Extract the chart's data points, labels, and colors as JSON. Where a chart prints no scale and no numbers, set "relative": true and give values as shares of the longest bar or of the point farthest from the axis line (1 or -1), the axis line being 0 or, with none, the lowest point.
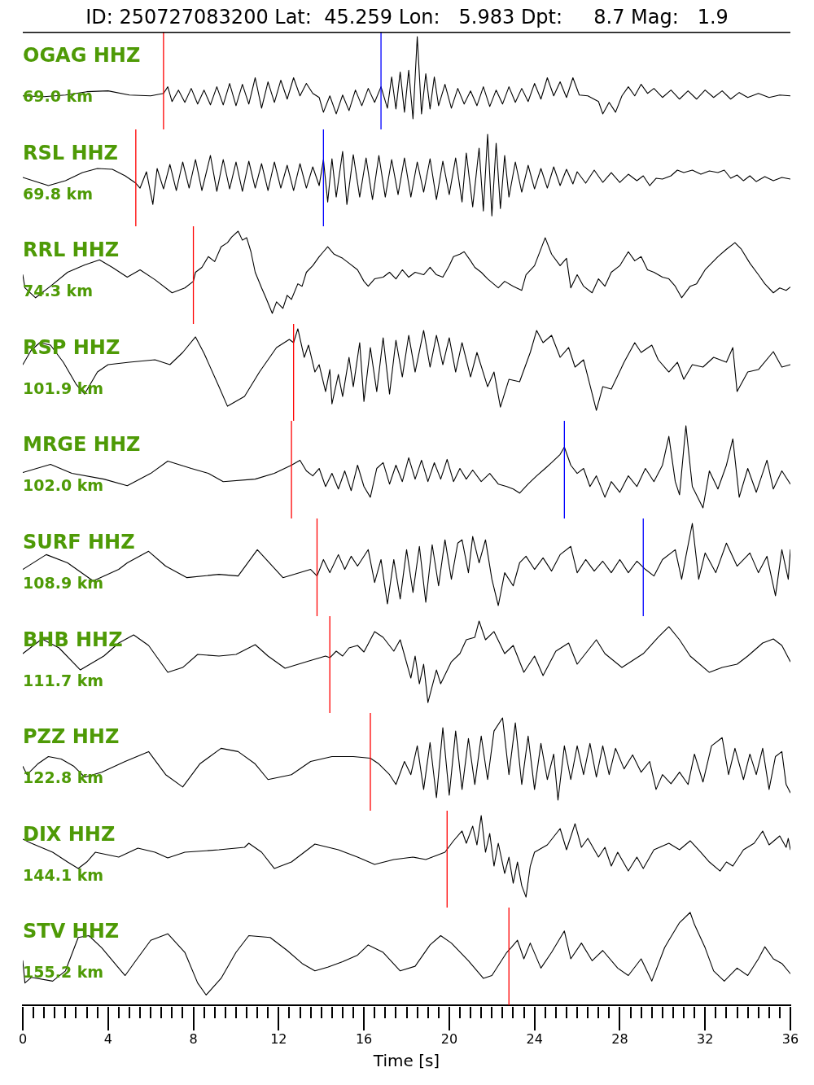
{
  "chart_data": [
    {
      "type": "line",
      "title": "ID: 250727083200 Lat:  45.259 Lon:   5.983 Dpt:     8.7 Mag:   1.9",
      "annotations": [
        "OGAG HHZ",
        "69.0 km"
      ],
      "relative": true,
      "xlim": [
        0,
        36
      ],
      "tick_labels": false,
      "ref_lines": [
        {
          "axis": "x",
          "value": 6.6,
          "color": "#ff0000"
        },
        {
          "axis": "x",
          "value": 16.8,
          "color": "#0000ff"
        }
      ],
      "x": [
        0,
        1,
        2,
        3,
        4,
        5,
        6,
        6.6,
        6.8,
        7,
        7.3,
        7.6,
        7.9,
        8.2,
        8.5,
        8.8,
        9.1,
        9.4,
        9.7,
        10,
        10.3,
        10.6,
        10.9,
        11.2,
        11.5,
        11.8,
        12.1,
        12.4,
        12.7,
        13,
        13.3,
        13.6,
        13.9,
        14.1,
        14.4,
        14.7,
        15,
        15.3,
        15.6,
        15.9,
        16.2,
        16.5,
        16.8,
        17.1,
        17.3,
        17.5,
        17.7,
        17.9,
        18.1,
        18.3,
        18.5,
        18.7,
        18.9,
        19.1,
        19.3,
        19.5,
        19.8,
        20.1,
        20.4,
        20.7,
        21,
        21.3,
        21.6,
        21.9,
        22.2,
        22.5,
        22.8,
        23.1,
        23.4,
        23.7,
        24,
        24.3,
        24.6,
        24.9,
        25.2,
        25.5,
        25.8,
        26.1,
        26.5,
        27,
        27.2,
        27.5,
        27.8,
        28.1,
        28.4,
        28.7,
        29,
        29.3,
        29.6,
        30,
        30.4,
        30.8,
        31.2,
        31.6,
        32,
        32.4,
        32.8,
        33.2,
        33.6,
        34,
        34.5,
        35,
        35.5,
        36
      ],
      "series": [
        {
          "color": "#000000",
          "values": [
            0.28,
            0.27,
            0.29,
            0.33,
            0.34,
            0.29,
            0.28,
            0.31,
            0.39,
            0.21,
            0.35,
            0.2,
            0.37,
            0.18,
            0.35,
            0.17,
            0.39,
            0.17,
            0.43,
            0.16,
            0.42,
            0.18,
            0.5,
            0.13,
            0.45,
            0.2,
            0.47,
            0.24,
            0.5,
            0.28,
            0.43,
            0.31,
            0.26,
            0.08,
            0.28,
            0.06,
            0.29,
            0.1,
            0.35,
            0.16,
            0.37,
            0.2,
            0.39,
            0.13,
            0.51,
            0.12,
            0.57,
            0.08,
            0.59,
            0,
            1,
            0.06,
            0.55,
            0.12,
            0.51,
            0.16,
            0.42,
            0.13,
            0.37,
            0.18,
            0.34,
            0.16,
            0.39,
            0.15,
            0.35,
            0.18,
            0.39,
            0.2,
            0.37,
            0.21,
            0.43,
            0.24,
            0.5,
            0.28,
            0.45,
            0.26,
            0.5,
            0.29,
            0.28,
            0.21,
            0.06,
            0.2,
            0.08,
            0.28,
            0.39,
            0.28,
            0.42,
            0.31,
            0.37,
            0.26,
            0.35,
            0.24,
            0.34,
            0.24,
            0.35,
            0.26,
            0.34,
            0.24,
            0.32,
            0.26,
            0.31,
            0.26,
            0.29,
            0.28
          ]
        }
      ]
    },
    {
      "type": "line",
      "annotations": [
        "RSL HHZ",
        "69.8 km"
      ],
      "relative": true,
      "xlim": [
        0,
        36
      ],
      "tick_labels": false,
      "ref_lines": [
        {
          "axis": "x",
          "value": 5.3,
          "color": "#ff0000"
        },
        {
          "axis": "x",
          "value": 14.1,
          "color": "#0000ff"
        }
      ],
      "x": [
        0,
        0.6,
        1.2,
        2,
        2.8,
        3.5,
        4.2,
        4.8,
        5.3,
        5.5,
        5.8,
        6.1,
        6.3,
        6.6,
        6.9,
        7.2,
        7.5,
        7.8,
        8.1,
        8.4,
        8.8,
        9.1,
        9.4,
        9.7,
        10,
        10.3,
        10.6,
        10.9,
        11.2,
        11.5,
        11.8,
        12.1,
        12.4,
        12.7,
        13,
        13.3,
        13.6,
        13.9,
        14.1,
        14.3,
        14.5,
        14.7,
        15,
        15.2,
        15.5,
        15.8,
        16.1,
        16.4,
        16.7,
        17,
        17.3,
        17.6,
        17.9,
        18.2,
        18.5,
        18.8,
        19.1,
        19.4,
        19.7,
        20,
        20.3,
        20.6,
        20.8,
        21.1,
        21.4,
        21.6,
        21.8,
        22,
        22.2,
        22.4,
        22.6,
        22.8,
        23.1,
        23.4,
        23.7,
        24,
        24.3,
        24.6,
        24.9,
        25.2,
        25.5,
        25.8,
        26,
        26.4,
        26.8,
        27.2,
        27.6,
        28,
        28.4,
        28.8,
        29.1,
        29.4,
        29.7,
        30,
        30.4,
        30.7,
        31,
        31.4,
        31.8,
        32.2,
        32.6,
        32.9,
        33.2,
        33.5,
        33.8,
        34.1,
        34.4,
        34.8,
        35.2,
        35.6,
        36
      ],
      "series": [
        {
          "color": "#000000",
          "values": [
            0.47,
            0.42,
            0.37,
            0.43,
            0.53,
            0.58,
            0.57,
            0.49,
            0.4,
            0.34,
            0.54,
            0.14,
            0.58,
            0.33,
            0.63,
            0.31,
            0.66,
            0.34,
            0.69,
            0.31,
            0.74,
            0.3,
            0.69,
            0.33,
            0.66,
            0.3,
            0.67,
            0.34,
            0.64,
            0.31,
            0.66,
            0.34,
            0.62,
            0.31,
            0.64,
            0.34,
            0.6,
            0.37,
            0.69,
            0.17,
            0.7,
            0.23,
            0.79,
            0.14,
            0.75,
            0.23,
            0.71,
            0.2,
            0.74,
            0.23,
            0.69,
            0.26,
            0.71,
            0.23,
            0.66,
            0.29,
            0.7,
            0.2,
            0.67,
            0.26,
            0.71,
            0.17,
            0.77,
            0.11,
            0.83,
            0.06,
            1,
            0,
            0.89,
            0.09,
            0.74,
            0.23,
            0.66,
            0.29,
            0.62,
            0.33,
            0.58,
            0.34,
            0.6,
            0.37,
            0.57,
            0.39,
            0.54,
            0.4,
            0.56,
            0.41,
            0.53,
            0.41,
            0.51,
            0.43,
            0.49,
            0.37,
            0.46,
            0.45,
            0.49,
            0.56,
            0.53,
            0.56,
            0.51,
            0.55,
            0.53,
            0.56,
            0.46,
            0.5,
            0.43,
            0.49,
            0.42,
            0.48,
            0.43,
            0.47,
            0.45
          ]
        }
      ]
    },
    {
      "type": "line",
      "annotations": [
        "RRL HHZ",
        "74.3 km"
      ],
      "relative": true,
      "xlim": [
        0,
        36
      ],
      "tick_labels": false,
      "ref_lines": [
        {
          "axis": "x",
          "value": 8.0,
          "color": "#ff0000"
        }
      ],
      "x": [
        0,
        0.1,
        0.6,
        1.3,
        2.1,
        2.9,
        3.6,
        4.2,
        4.9,
        5.5,
        6.2,
        7,
        7.6,
        8,
        8.1,
        8.4,
        8.7,
        9,
        9.3,
        9.6,
        9.8,
        10.1,
        10.3,
        10.5,
        10.7,
        10.9,
        11.2,
        11.4,
        11.7,
        11.9,
        12.2,
        12.4,
        12.6,
        12.9,
        13.1,
        13.3,
        13.6,
        13.9,
        14.1,
        14.3,
        14.6,
        15,
        15.3,
        15.7,
        16,
        16.2,
        16.5,
        16.9,
        17.2,
        17.5,
        17.8,
        18.1,
        18.4,
        18.8,
        19.1,
        19.4,
        19.7,
        20,
        20.2,
        20.5,
        20.7,
        21,
        21.2,
        21.5,
        21.8,
        22.3,
        22.6,
        23,
        23.4,
        23.6,
        24,
        24.5,
        24.8,
        25.2,
        25.5,
        25.7,
        26,
        26.3,
        26.7,
        27,
        27.3,
        27.6,
        28,
        28.4,
        28.7,
        29,
        29.3,
        29.6,
        30,
        30.3,
        30.6,
        30.9,
        31.3,
        31.6,
        32,
        32.3,
        32.6,
        33,
        33.4,
        33.7,
        34.1,
        34.5,
        34.8,
        35.2,
        35.5,
        35.8,
        36
      ],
      "series": [
        {
          "color": "#000000",
          "values": [
            0.47,
            0.31,
            0.19,
            0.33,
            0.5,
            0.59,
            0.65,
            0.56,
            0.44,
            0.53,
            0.41,
            0.25,
            0.31,
            0.39,
            0.5,
            0.56,
            0.69,
            0.63,
            0.81,
            0.86,
            0.93,
            1,
            0.89,
            0.92,
            0.75,
            0.5,
            0.31,
            0.19,
            0,
            0.14,
            0.06,
            0.22,
            0.17,
            0.36,
            0.33,
            0.5,
            0.58,
            0.69,
            0.75,
            0.81,
            0.72,
            0.67,
            0.61,
            0.53,
            0.39,
            0.33,
            0.42,
            0.44,
            0.5,
            0.42,
            0.53,
            0.44,
            0.5,
            0.47,
            0.56,
            0.47,
            0.44,
            0.58,
            0.69,
            0.72,
            0.75,
            0.64,
            0.56,
            0.5,
            0.42,
            0.31,
            0.39,
            0.33,
            0.28,
            0.47,
            0.58,
            0.92,
            0.72,
            0.58,
            0.67,
            0.31,
            0.47,
            0.33,
            0.25,
            0.42,
            0.33,
            0.5,
            0.58,
            0.75,
            0.64,
            0.69,
            0.53,
            0.5,
            0.44,
            0.42,
            0.33,
            0.19,
            0.33,
            0.36,
            0.53,
            0.61,
            0.69,
            0.78,
            0.86,
            0.78,
            0.61,
            0.47,
            0.36,
            0.25,
            0.31,
            0.28,
            0.32
          ]
        }
      ]
    },
    {
      "type": "line",
      "annotations": [
        "RSP HHZ",
        "101.9 km"
      ],
      "relative": true,
      "xlim": [
        0,
        36
      ],
      "tick_labels": false,
      "ref_lines": [
        {
          "axis": "x",
          "value": 12.7,
          "color": "#ff0000"
        }
      ],
      "x": [
        0,
        0.4,
        0.8,
        1.3,
        1.9,
        2.5,
        2.9,
        3.5,
        4,
        5,
        6.2,
        6.9,
        7.5,
        8.1,
        8.5,
        9.2,
        9.6,
        10.4,
        11.1,
        11.9,
        12.5,
        12.7,
        12.9,
        13.2,
        13.4,
        13.7,
        13.9,
        14.2,
        14.4,
        14.5,
        14.8,
        15,
        15.3,
        15.5,
        15.8,
        16,
        16.3,
        16.6,
        16.9,
        17.2,
        17.5,
        17.8,
        18.1,
        18.4,
        18.8,
        19.1,
        19.4,
        19.7,
        20,
        20.3,
        20.6,
        21,
        21.3,
        21.8,
        22.1,
        22.4,
        22.8,
        23.3,
        23.8,
        24.1,
        24.4,
        24.8,
        25.2,
        25.6,
        25.9,
        26.3,
        26.9,
        27.2,
        27.6,
        28.2,
        28.7,
        29,
        29.5,
        29.8,
        30.3,
        30.7,
        31,
        31.4,
        31.9,
        32.4,
        33,
        33.3,
        33.5,
        34,
        34.5,
        35.2,
        35.6,
        36
      ],
      "series": [
        {
          "color": "#000000",
          "values": [
            0.56,
            0.74,
            0.83,
            0.8,
            0.59,
            0.32,
            0.2,
            0.47,
            0.56,
            0.59,
            0.62,
            0.56,
            0.71,
            0.9,
            0.7,
            0.29,
            0.05,
            0.17,
            0.47,
            0.77,
            0.87,
            0.83,
            1,
            0.65,
            0.8,
            0.47,
            0.56,
            0.23,
            0.5,
            0.08,
            0.44,
            0.17,
            0.65,
            0.29,
            0.83,
            0.11,
            0.77,
            0.23,
            0.89,
            0.2,
            0.86,
            0.41,
            0.92,
            0.47,
            0.98,
            0.53,
            0.92,
            0.56,
            0.89,
            0.47,
            0.83,
            0.41,
            0.71,
            0.29,
            0.47,
            0.04,
            0.38,
            0.35,
            0.71,
            0.98,
            0.83,
            0.92,
            0.65,
            0.77,
            0.53,
            0.62,
            0,
            0.29,
            0.26,
            0.59,
            0.83,
            0.71,
            0.8,
            0.62,
            0.47,
            0.59,
            0.38,
            0.56,
            0.53,
            0.65,
            0.59,
            0.77,
            0.23,
            0.47,
            0.5,
            0.72,
            0.53,
            0.56
          ]
        }
      ]
    },
    {
      "type": "line",
      "annotations": [
        "MRGE HHZ",
        "102.0 km"
      ],
      "relative": true,
      "xlim": [
        0,
        36
      ],
      "tick_labels": false,
      "ref_lines": [
        {
          "axis": "x",
          "value": 12.6,
          "color": "#ff0000"
        },
        {
          "axis": "x",
          "value": 25.4,
          "color": "#0000ff"
        }
      ],
      "x": [
        0,
        1.3,
        2.3,
        3.8,
        4.9,
        6,
        6.8,
        7.9,
        8.7,
        9.4,
        10.9,
        11.8,
        12.6,
        13,
        13.3,
        13.6,
        13.9,
        14.2,
        14.5,
        14.8,
        15.1,
        15.4,
        15.7,
        16,
        16.3,
        16.6,
        16.9,
        17.2,
        17.5,
        17.8,
        18.1,
        18.4,
        18.7,
        19,
        19.3,
        19.6,
        19.9,
        20.2,
        20.5,
        20.8,
        21.1,
        21.5,
        21.9,
        22.3,
        22.7,
        23,
        23.3,
        23.7,
        24.1,
        24.5,
        24.8,
        25.2,
        25.4,
        25.7,
        26,
        26.3,
        26.6,
        26.9,
        27.3,
        27.6,
        28,
        28.4,
        28.8,
        29.2,
        29.6,
        30,
        30.3,
        30.6,
        30.8,
        31.1,
        31.4,
        31.9,
        32.2,
        32.6,
        33,
        33.3,
        33.6,
        34,
        34.4,
        34.9,
        35.2,
        35.6,
        36
      ],
      "series": [
        {
          "color": "#000000",
          "values": [
            0.43,
            0.53,
            0.42,
            0.35,
            0.27,
            0.42,
            0.57,
            0.48,
            0.42,
            0.32,
            0.35,
            0.42,
            0.52,
            0.58,
            0.45,
            0.39,
            0.48,
            0.26,
            0.42,
            0.23,
            0.45,
            0.21,
            0.52,
            0.26,
            0.13,
            0.48,
            0.55,
            0.29,
            0.52,
            0.32,
            0.61,
            0.35,
            0.58,
            0.32,
            0.55,
            0.35,
            0.59,
            0.32,
            0.48,
            0.35,
            0.46,
            0.32,
            0.42,
            0.29,
            0.26,
            0.23,
            0.18,
            0.29,
            0.39,
            0.48,
            0.55,
            0.65,
            0.74,
            0.52,
            0.42,
            0.48,
            0.26,
            0.39,
            0.13,
            0.32,
            0.19,
            0.39,
            0.26,
            0.48,
            0.32,
            0.52,
            0.87,
            0.32,
            0.16,
            1,
            0.26,
            0,
            0.45,
            0.23,
            0.52,
            0.84,
            0.13,
            0.48,
            0.19,
            0.58,
            0.23,
            0.45,
            0.29
          ]
        }
      ]
    },
    {
      "type": "line",
      "annotations": [
        "SURF HHZ",
        "108.9 km"
      ],
      "relative": true,
      "xlim": [
        0,
        36
      ],
      "tick_labels": false,
      "ref_lines": [
        {
          "axis": "x",
          "value": 13.8,
          "color": "#ff0000"
        },
        {
          "axis": "x",
          "value": 29.1,
          "color": "#0000ff"
        }
      ],
      "x": [
        0,
        1.1,
        2.1,
        3.3,
        4.5,
        4.9,
        5.9,
        6.7,
        7.7,
        9.2,
        10.1,
        11,
        12.2,
        13.5,
        13.8,
        14.1,
        14.4,
        14.8,
        15.1,
        15.4,
        15.7,
        16.2,
        16.5,
        16.8,
        17.1,
        17.4,
        17.7,
        18,
        18.3,
        18.6,
        18.9,
        19.2,
        19.5,
        19.8,
        20.1,
        20.4,
        20.6,
        20.9,
        21.1,
        21.4,
        21.7,
        22,
        22.3,
        22.6,
        23,
        23.3,
        23.6,
        24,
        24.4,
        24.8,
        25.2,
        25.7,
        26,
        26.4,
        26.8,
        27.2,
        27.6,
        28,
        28.4,
        28.8,
        29.2,
        29.6,
        30,
        30.6,
        30.9,
        31.1,
        31.4,
        31.7,
        32,
        32.5,
        33,
        33.5,
        34.1,
        34.5,
        34.9,
        35.3,
        35.6,
        35.9,
        36
      ],
      "series": [
        {
          "color": "#000000",
          "values": [
            0.44,
            0.62,
            0.52,
            0.3,
            0.44,
            0.52,
            0.66,
            0.48,
            0.34,
            0.38,
            0.36,
            0.68,
            0.34,
            0.44,
            0.36,
            0.56,
            0.4,
            0.62,
            0.44,
            0.6,
            0.48,
            0.68,
            0.28,
            0.56,
            0.02,
            0.56,
            0.08,
            0.68,
            0.16,
            0.72,
            0.04,
            0.74,
            0.24,
            0.8,
            0.32,
            0.76,
            0.8,
            0.4,
            0.84,
            0.52,
            0.8,
            0.32,
            0,
            0.4,
            0.24,
            0.52,
            0.6,
            0.44,
            0.58,
            0.42,
            0.62,
            0.72,
            0.4,
            0.56,
            0.42,
            0.54,
            0.4,
            0.56,
            0.4,
            0.54,
            0.44,
            0.36,
            0.56,
            0.68,
            0.32,
            0.6,
            1,
            0.32,
            0.64,
            0.4,
            0.76,
            0.48,
            0.64,
            0.4,
            0.6,
            0.12,
            0.68,
            0.32,
            0.68
          ]
        }
      ]
    },
    {
      "type": "line",
      "annotations": [
        "BHB HHZ",
        "111.7 km"
      ],
      "relative": true,
      "xlim": [
        0,
        36
      ],
      "tick_labels": false,
      "ref_lines": [
        {
          "axis": "x",
          "value": 14.4,
          "color": "#ff0000"
        }
      ],
      "x": [
        0,
        0.9,
        1.7,
        2.7,
        3.8,
        4.5,
        5.2,
        5.9,
        6.8,
        7.5,
        8.2,
        9.2,
        10,
        10.9,
        11.5,
        12.3,
        13.3,
        14.2,
        14.4,
        14.7,
        15,
        15.3,
        15.7,
        16,
        16.5,
        16.9,
        17.4,
        17.7,
        18.2,
        18.4,
        18.6,
        18.8,
        19,
        19.4,
        19.6,
        20.1,
        20.5,
        20.8,
        21.2,
        21.4,
        21.7,
        22.1,
        22.6,
        23,
        23.5,
        24,
        24.4,
        25,
        25.6,
        26,
        26.9,
        27.3,
        28.1,
        29.1,
        29.8,
        30.3,
        30.8,
        31.3,
        32.2,
        32.8,
        33.5,
        34,
        34.7,
        35.2,
        35.6,
        35.8,
        36
      ],
      "series": [
        {
          "color": "#000000",
          "values": [
            0.6,
            0.78,
            0.67,
            0.4,
            0.57,
            0.73,
            0.83,
            0.7,
            0.37,
            0.43,
            0.59,
            0.57,
            0.59,
            0.71,
            0.57,
            0.42,
            0.5,
            0.57,
            0.55,
            0.63,
            0.57,
            0.67,
            0.7,
            0.62,
            0.87,
            0.8,
            0.63,
            0.77,
            0.3,
            0.57,
            0.23,
            0.47,
            0,
            0.4,
            0.23,
            0.5,
            0.6,
            0.77,
            0.8,
            1,
            0.77,
            0.87,
            0.6,
            0.7,
            0.37,
            0.57,
            0.33,
            0.63,
            0.73,
            0.47,
            0.77,
            0.6,
            0.43,
            0.6,
            0.8,
            0.93,
            0.77,
            0.57,
            0.37,
            0.43,
            0.47,
            0.57,
            0.73,
            0.78,
            0.7,
            0.6,
            0.5
          ]
        }
      ]
    },
    {
      "type": "line",
      "annotations": [
        "PZZ HHZ",
        "122.8 km"
      ],
      "relative": true,
      "xlim": [
        0,
        36
      ],
      "tick_labels": false,
      "ref_lines": [
        {
          "axis": "x",
          "value": 16.3,
          "color": "#ff0000"
        }
      ],
      "x": [
        0,
        0.2,
        0.7,
        1.2,
        1.8,
        2.4,
        2.9,
        3.7,
        4.8,
        5.9,
        6.7,
        7.5,
        8.3,
        9.3,
        10.1,
        10.9,
        11.5,
        12.6,
        13.5,
        14.5,
        15.5,
        16.3,
        16.7,
        17.2,
        17.5,
        17.9,
        18.2,
        18.5,
        18.8,
        19.1,
        19.4,
        19.7,
        20,
        20.3,
        20.6,
        20.9,
        21.2,
        21.5,
        21.8,
        22.1,
        22.5,
        22.8,
        23.1,
        23.4,
        23.7,
        24,
        24.3,
        24.6,
        24.9,
        25.1,
        25.4,
        25.7,
        26,
        26.3,
        26.6,
        26.9,
        27.2,
        27.5,
        27.8,
        28.2,
        28.6,
        29,
        29.4,
        29.7,
        30,
        30.4,
        30.8,
        31.2,
        31.5,
        31.9,
        32.3,
        32.8,
        33.1,
        33.4,
        33.8,
        34.1,
        34.4,
        34.7,
        35,
        35.3,
        35.6,
        35.8,
        36
      ],
      "series": [
        {
          "color": "#000000",
          "values": [
            0.41,
            0.31,
            0.44,
            0.53,
            0.5,
            0.41,
            0.28,
            0.34,
            0.47,
            0.59,
            0.31,
            0.16,
            0.44,
            0.63,
            0.59,
            0.44,
            0.25,
            0.31,
            0.47,
            0.53,
            0.53,
            0.51,
            0.44,
            0.31,
            0.19,
            0.47,
            0.31,
            0.66,
            0.13,
            0.7,
            0.03,
            0.88,
            0.06,
            0.84,
            0.13,
            0.75,
            0.19,
            0.78,
            0.25,
            0.84,
            1,
            0.31,
            0.94,
            0.19,
            0.78,
            0.13,
            0.69,
            0.25,
            0.56,
            0,
            0.66,
            0.25,
            0.66,
            0.31,
            0.69,
            0.28,
            0.66,
            0.31,
            0.63,
            0.38,
            0.55,
            0.34,
            0.47,
            0.13,
            0.31,
            0.2,
            0.34,
            0.19,
            0.56,
            0.22,
            0.66,
            0.76,
            0.31,
            0.63,
            0.25,
            0.56,
            0.31,
            0.63,
            0.13,
            0.53,
            0.59,
            0.19,
            0.09
          ]
        }
      ]
    },
    {
      "type": "line",
      "annotations": [
        "DIX HHZ",
        "144.1 km"
      ],
      "relative": true,
      "xlim": [
        0,
        36
      ],
      "tick_labels": false,
      "ref_lines": [
        {
          "axis": "x",
          "value": 19.9,
          "color": "#ff0000"
        }
      ],
      "x": [
        0,
        0.4,
        1.4,
        2.1,
        2.6,
        3,
        3.4,
        4.5,
        5.4,
        6.2,
        6.8,
        7.6,
        9.2,
        10.4,
        10.6,
        11.2,
        11.8,
        12.6,
        13.7,
        14.8,
        15.7,
        16.5,
        17.4,
        18.3,
        18.9,
        19.8,
        20.2,
        20.6,
        20.8,
        21.1,
        21.3,
        21.5,
        21.7,
        21.9,
        22.1,
        22.3,
        22.6,
        22.8,
        23,
        23.2,
        23.4,
        23.6,
        23.8,
        24,
        24.6,
        25.2,
        25.5,
        25.9,
        26.2,
        26.5,
        27,
        27.3,
        27.6,
        27.9,
        28.4,
        28.8,
        29.1,
        29.6,
        30.3,
        30.8,
        31.3,
        31.8,
        32.2,
        32.7,
        33,
        33.3,
        33.8,
        34.3,
        34.7,
        35,
        35.5,
        35.8,
        35.9,
        36
      ],
      "series": [
        {
          "color": "#000000",
          "values": [
            0.71,
            0.66,
            0.55,
            0.43,
            0.35,
            0.43,
            0.55,
            0.49,
            0.6,
            0.55,
            0.48,
            0.55,
            0.58,
            0.61,
            0.66,
            0.55,
            0.35,
            0.43,
            0.65,
            0.58,
            0.49,
            0.4,
            0.46,
            0.49,
            0.46,
            0.55,
            0.69,
            0.81,
            0.66,
            0.87,
            0.64,
            1,
            0.55,
            0.78,
            0.38,
            0.66,
            0.29,
            0.49,
            0.17,
            0.43,
            0.14,
            0,
            0.38,
            0.55,
            0.64,
            0.84,
            0.58,
            0.9,
            0.61,
            0.72,
            0.49,
            0.61,
            0.38,
            0.55,
            0.32,
            0.49,
            0.35,
            0.58,
            0.66,
            0.58,
            0.69,
            0.55,
            0.43,
            0.32,
            0.43,
            0.38,
            0.58,
            0.66,
            0.81,
            0.64,
            0.75,
            0.61,
            0.72,
            0.58
          ]
        }
      ]
    },
    {
      "type": "line",
      "annotations": [
        "STV HHZ",
        "155.2 km"
      ],
      "relative": true,
      "xlim": [
        0,
        36
      ],
      "xlabel": "Time [s]",
      "ref_lines": [
        {
          "axis": "x",
          "value": 22.8,
          "color": "#ff0000"
        }
      ],
      "xticks": [
        0,
        {
          "value": 0.5,
          "label": null
        },
        {
          "value": 1,
          "label": null
        },
        {
          "value": 1.5,
          "label": null
        },
        {
          "value": 2,
          "label": null
        },
        {
          "value": 2.5,
          "label": null
        },
        {
          "value": 3,
          "label": null
        },
        {
          "value": 3.5,
          "label": null
        },
        4,
        {
          "value": 4.5,
          "label": null
        },
        {
          "value": 5,
          "label": null
        },
        {
          "value": 5.5,
          "label": null
        },
        {
          "value": 6,
          "label": null
        },
        {
          "value": 6.5,
          "label": null
        },
        {
          "value": 7,
          "label": null
        },
        {
          "value": 7.5,
          "label": null
        },
        8,
        {
          "value": 8.5,
          "label": null
        },
        {
          "value": 9,
          "label": null
        },
        {
          "value": 9.5,
          "label": null
        },
        {
          "value": 10,
          "label": null
        },
        {
          "value": 10.5,
          "label": null
        },
        {
          "value": 11,
          "label": null
        },
        {
          "value": 11.5,
          "label": null
        },
        12,
        {
          "value": 12.5,
          "label": null
        },
        {
          "value": 13,
          "label": null
        },
        {
          "value": 13.5,
          "label": null
        },
        {
          "value": 14,
          "label": null
        },
        {
          "value": 14.5,
          "label": null
        },
        {
          "value": 15,
          "label": null
        },
        {
          "value": 15.5,
          "label": null
        },
        16,
        {
          "value": 16.5,
          "label": null
        },
        {
          "value": 17,
          "label": null
        },
        {
          "value": 17.5,
          "label": null
        },
        {
          "value": 18,
          "label": null
        },
        {
          "value": 18.5,
          "label": null
        },
        {
          "value": 19,
          "label": null
        },
        {
          "value": 19.5,
          "label": null
        },
        20,
        {
          "value": 20.5,
          "label": null
        },
        {
          "value": 21,
          "label": null
        },
        {
          "value": 21.5,
          "label": null
        },
        {
          "value": 22,
          "label": null
        },
        {
          "value": 22.5,
          "label": null
        },
        {
          "value": 23,
          "label": null
        },
        {
          "value": 23.5,
          "label": null
        },
        24,
        {
          "value": 24.5,
          "label": null
        },
        {
          "value": 25,
          "label": null
        },
        {
          "value": 25.5,
          "label": null
        },
        {
          "value": 26,
          "label": null
        },
        {
          "value": 26.5,
          "label": null
        },
        {
          "value": 27,
          "label": null
        },
        {
          "value": 27.5,
          "label": null
        },
        28,
        {
          "value": 28.5,
          "label": null
        },
        {
          "value": 29,
          "label": null
        },
        {
          "value": 29.5,
          "label": null
        },
        {
          "value": 30,
          "label": null
        },
        {
          "value": 30.5,
          "label": null
        },
        {
          "value": 31,
          "label": null
        },
        {
          "value": 31.5,
          "label": null
        },
        32,
        {
          "value": 32.5,
          "label": null
        },
        {
          "value": 33,
          "label": null
        },
        {
          "value": 33.5,
          "label": null
        },
        {
          "value": 34,
          "label": null
        },
        {
          "value": 34.5,
          "label": null
        },
        {
          "value": 35,
          "label": null
        },
        {
          "value": 35.5,
          "label": null
        },
        36
      ],
      "x": [
        0,
        0.1,
        0.4,
        1.4,
        2,
        2.6,
        3.1,
        3.7,
        4.5,
        4.8,
        5.3,
        6,
        6.8,
        7.6,
        8.2,
        8.6,
        9.3,
        10,
        10.6,
        11.6,
        12.4,
        13.1,
        13.7,
        14.3,
        15,
        15.7,
        16.2,
        16.9,
        17.7,
        18.4,
        19.1,
        19.6,
        20.1,
        20.9,
        21.6,
        22,
        22.7,
        22.9,
        23.2,
        23.5,
        23.8,
        24.3,
        24.8,
        25.4,
        25.7,
        26.2,
        26.7,
        27.2,
        27.9,
        28.4,
        29,
        29.5,
        30.1,
        30.3,
        30.8,
        31.3,
        31.5,
        32,
        32.4,
        32.9,
        33.5,
        34,
        34.5,
        34.8,
        35.2,
        35.6,
        36
      ],
      "series": [
        {
          "color": "#000000",
          "values": [
            0.48,
            0.24,
            0.3,
            0.26,
            0.37,
            0.73,
            0.75,
            0.62,
            0.4,
            0.32,
            0.48,
            0.7,
            0.77,
            0.57,
            0.24,
            0.11,
            0.29,
            0.57,
            0.75,
            0.73,
            0.59,
            0.45,
            0.37,
            0.41,
            0.47,
            0.54,
            0.65,
            0.57,
            0.37,
            0.42,
            0.65,
            0.75,
            0.67,
            0.48,
            0.29,
            0.32,
            0.57,
            0.62,
            0.7,
            0.5,
            0.67,
            0.4,
            0.57,
            0.8,
            0.5,
            0.67,
            0.48,
            0.59,
            0.4,
            0.32,
            0.5,
            0.26,
            0.62,
            0.7,
            0.89,
            1,
            0.87,
            0.62,
            0.37,
            0.26,
            0.4,
            0.32,
            0.5,
            0.63,
            0.5,
            0.45,
            0.34
          ]
        }
      ]
    }
  ]
}
